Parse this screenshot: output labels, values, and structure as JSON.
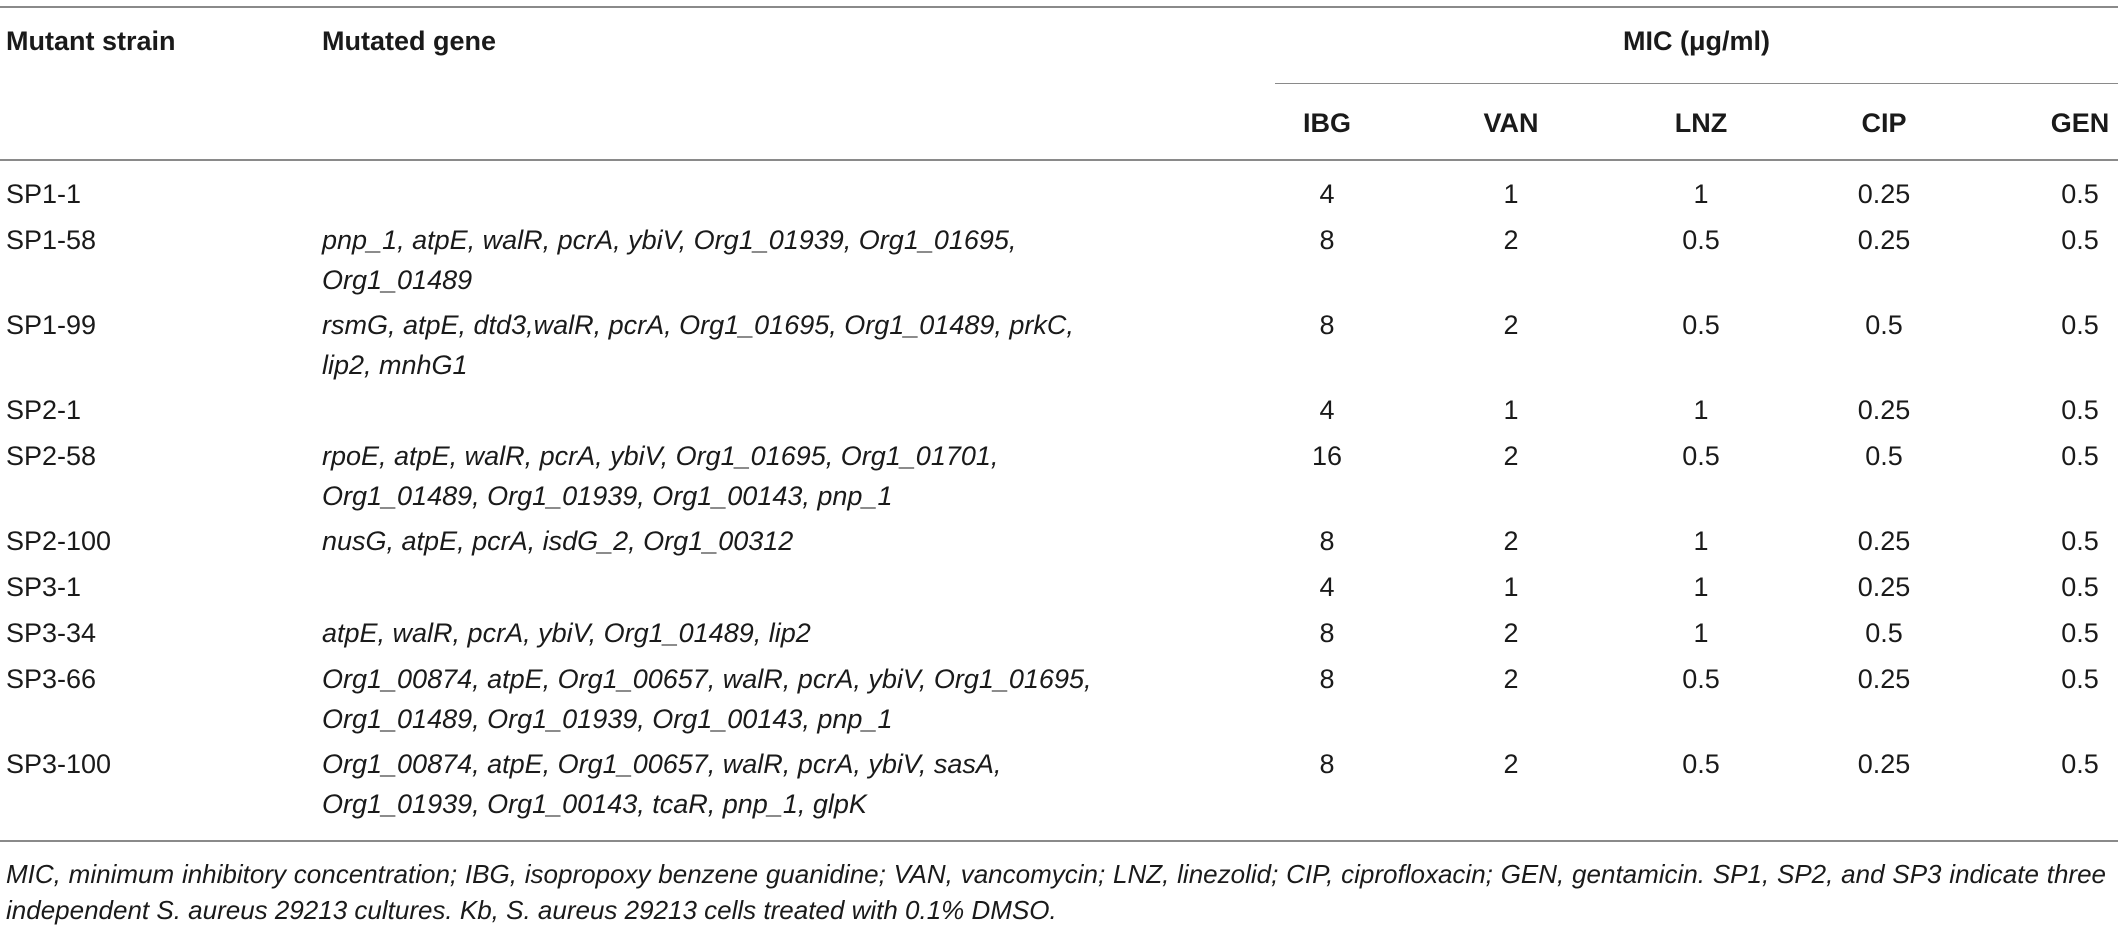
{
  "table": {
    "headers": {
      "strain": "Mutant strain",
      "gene": "Mutated gene",
      "mic_group": "MIC (μg/ml)",
      "drugs": [
        "IBG",
        "VAN",
        "LNZ",
        "CIP",
        "GEN"
      ]
    },
    "rows": [
      {
        "strain": "SP1-1",
        "gene_line1": "",
        "gene_line2": "",
        "values": [
          "4",
          "1",
          "1",
          "0.25",
          "0.5"
        ]
      },
      {
        "strain": "SP1-58",
        "gene_line1": "pnp_1, atpE, walR, pcrA, ybiV, Org1_01939, Org1_01695,",
        "gene_line2": "Org1_01489",
        "values": [
          "8",
          "2",
          "0.5",
          "0.25",
          "0.5"
        ]
      },
      {
        "strain": "SP1-99",
        "gene_line1": "rsmG, atpE, dtd3,walR, pcrA, Org1_01695, Org1_01489, prkC,",
        "gene_line2": "lip2, mnhG1",
        "values": [
          "8",
          "2",
          "0.5",
          "0.5",
          "0.5"
        ]
      },
      {
        "strain": "SP2-1",
        "gene_line1": "",
        "gene_line2": "",
        "values": [
          "4",
          "1",
          "1",
          "0.25",
          "0.5"
        ]
      },
      {
        "strain": "SP2-58",
        "gene_line1": "rpoE, atpE, walR, pcrA, ybiV, Org1_01695, Org1_01701,",
        "gene_line2": "Org1_01489, Org1_01939, Org1_00143, pnp_1",
        "values": [
          "16",
          "2",
          "0.5",
          "0.5",
          "0.5"
        ]
      },
      {
        "strain": "SP2-100",
        "gene_line1": "nusG, atpE, pcrA, isdG_2, Org1_00312",
        "gene_line2": "",
        "values": [
          "8",
          "2",
          "1",
          "0.25",
          "0.5"
        ]
      },
      {
        "strain": "SP3-1",
        "gene_line1": "",
        "gene_line2": "",
        "values": [
          "4",
          "1",
          "1",
          "0.25",
          "0.5"
        ]
      },
      {
        "strain": "SP3-34",
        "gene_line1": "atpE, walR, pcrA, ybiV, Org1_01489, lip2",
        "gene_line2": "",
        "values": [
          "8",
          "2",
          "1",
          "0.5",
          "0.5"
        ]
      },
      {
        "strain": "SP3-66",
        "gene_line1": "Org1_00874, atpE, Org1_00657, walR, pcrA, ybiV, Org1_01695,",
        "gene_line2": "Org1_01489, Org1_01939, Org1_00143, pnp_1",
        "values": [
          "8",
          "2",
          "0.5",
          "0.25",
          "0.5"
        ]
      },
      {
        "strain": "SP3-100",
        "gene_line1": "Org1_00874, atpE, Org1_00657, walR, pcrA, ybiV, sasA,",
        "gene_line2": "Org1_01939, Org1_00143, tcaR, pnp_1, glpK",
        "values": [
          "8",
          "2",
          "0.5",
          "0.25",
          "0.5"
        ]
      }
    ],
    "footnote": "MIC, minimum inhibitory concentration; IBG, isopropoxy benzene guanidine; VAN, vancomycin; LNZ, linezolid; CIP, ciprofloxacin; GEN, gentamicin. SP1, SP2, and SP3 indicate three independent S. aureus 29213 cultures. Kb, S. aureus 29213 cells treated with 0.1% DMSO."
  }
}
